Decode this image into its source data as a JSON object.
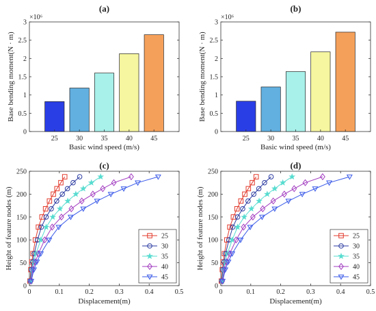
{
  "chart_data": [
    {
      "panel": "(a)",
      "type": "bar",
      "title": "(a)",
      "xlabel": "Basic wind speed (m/s)",
      "ylabel": "Base bending moment(N · m)",
      "y_exponent_label": "×10⁶",
      "categories": [
        "25",
        "30",
        "35",
        "40",
        "45"
      ],
      "values": [
        0.82,
        1.19,
        1.6,
        2.13,
        2.65
      ],
      "bar_colors": [
        "#2a3ee6",
        "#62b0e0",
        "#a8f0ea",
        "#f6f6a0",
        "#f5a05a"
      ],
      "ylim": [
        0,
        3
      ],
      "yticks": [
        0,
        0.5,
        1,
        1.5,
        2,
        2.5,
        3
      ],
      "ytick_labels": [
        "0",
        "0.5",
        "1",
        "1.5",
        "2",
        "2.5",
        "3"
      ],
      "grid": false
    },
    {
      "panel": "(b)",
      "type": "bar",
      "title": "(b)",
      "xlabel": "Basic wind speed (m/s)",
      "ylabel": "Base bending moment(N · m)",
      "y_exponent_label": "×10⁶",
      "categories": [
        "25",
        "30",
        "35",
        "40",
        "45"
      ],
      "values": [
        0.83,
        1.22,
        1.64,
        2.18,
        2.72
      ],
      "bar_colors": [
        "#2a3ee6",
        "#62b0e0",
        "#a8f0ea",
        "#f6f6a0",
        "#f5a05a"
      ],
      "ylim": [
        0,
        3
      ],
      "yticks": [
        0,
        0.5,
        1,
        1.5,
        2,
        2.5,
        3
      ],
      "ytick_labels": [
        "0",
        "0.5",
        "1",
        "1.5",
        "2",
        "2.5",
        "3"
      ],
      "grid": false
    },
    {
      "panel": "(c)",
      "type": "line",
      "title": "(c)",
      "xlabel": "Displacement(m)",
      "ylabel": "Height of feature nodes (m)",
      "xlim": [
        0,
        0.5
      ],
      "ylim": [
        0,
        250
      ],
      "xticks": [
        0,
        0.1,
        0.2,
        0.3,
        0.4,
        0.5
      ],
      "xtick_labels": [
        "0",
        "0.1",
        "0.2",
        "0.3",
        "0.4",
        "0.5"
      ],
      "yticks": [
        0,
        50,
        100,
        150,
        200,
        250
      ],
      "ytick_labels": [
        "0",
        "50",
        "100",
        "150",
        "200",
        "250"
      ],
      "legend": "bottom-right",
      "y": [
        10,
        35,
        52,
        70,
        100,
        128,
        150,
        168,
        185,
        200,
        212,
        225,
        238
      ],
      "series": [
        {
          "name": "25",
          "color": "#e23a2c",
          "marker": "square",
          "x": [
            0.002,
            0.005,
            0.008,
            0.012,
            0.02,
            0.03,
            0.042,
            0.054,
            0.067,
            0.08,
            0.092,
            0.105,
            0.118
          ]
        },
        {
          "name": "30",
          "color": "#2a3aa0",
          "marker": "circle",
          "x": [
            0.003,
            0.007,
            0.011,
            0.016,
            0.027,
            0.04,
            0.056,
            0.073,
            0.091,
            0.11,
            0.127,
            0.146,
            0.168
          ]
        },
        {
          "name": "35",
          "color": "#58dcd0",
          "marker": "star",
          "x": [
            0.004,
            0.009,
            0.015,
            0.022,
            0.038,
            0.056,
            0.078,
            0.102,
            0.128,
            0.155,
            0.18,
            0.207,
            0.238
          ]
        },
        {
          "name": "40",
          "color": "#a23cc0",
          "marker": "diamond",
          "x": [
            0.005,
            0.012,
            0.02,
            0.03,
            0.051,
            0.076,
            0.107,
            0.14,
            0.175,
            0.212,
            0.245,
            0.282,
            0.34
          ]
        },
        {
          "name": "45",
          "color": "#3a5ae8",
          "marker": "triangle-down",
          "x": [
            0.006,
            0.015,
            0.025,
            0.038,
            0.066,
            0.098,
            0.138,
            0.18,
            0.226,
            0.272,
            0.315,
            0.362,
            0.43
          ]
        }
      ]
    },
    {
      "panel": "(d)",
      "type": "line",
      "title": "(d)",
      "xlabel": "Displacement(m)",
      "ylabel": "Height of feature nodes (m)",
      "xlim": [
        0,
        0.5
      ],
      "ylim": [
        0,
        250
      ],
      "xticks": [
        0,
        0.1,
        0.2,
        0.3,
        0.4,
        0.5
      ],
      "xtick_labels": [
        "0",
        "0.1",
        "0.2",
        "0.3",
        "0.4",
        "0.5"
      ],
      "yticks": [
        0,
        50,
        100,
        150,
        200,
        250
      ],
      "ytick_labels": [
        "0",
        "50",
        "100",
        "150",
        "200",
        "250"
      ],
      "legend": "bottom-right",
      "y": [
        10,
        35,
        52,
        70,
        100,
        128,
        150,
        168,
        185,
        200,
        212,
        225,
        238
      ],
      "series": [
        {
          "name": "25",
          "color": "#e23a2c",
          "marker": "square",
          "x": [
            0.002,
            0.005,
            0.008,
            0.012,
            0.02,
            0.03,
            0.042,
            0.054,
            0.067,
            0.08,
            0.092,
            0.105,
            0.118
          ]
        },
        {
          "name": "30",
          "color": "#2a3aa0",
          "marker": "circle",
          "x": [
            0.003,
            0.007,
            0.011,
            0.016,
            0.027,
            0.04,
            0.056,
            0.073,
            0.091,
            0.11,
            0.127,
            0.146,
            0.168
          ]
        },
        {
          "name": "35",
          "color": "#58dcd0",
          "marker": "star",
          "x": [
            0.004,
            0.009,
            0.015,
            0.022,
            0.038,
            0.056,
            0.078,
            0.102,
            0.128,
            0.155,
            0.18,
            0.207,
            0.238
          ]
        },
        {
          "name": "40",
          "color": "#a23cc0",
          "marker": "diamond",
          "x": [
            0.005,
            0.012,
            0.02,
            0.03,
            0.051,
            0.076,
            0.107,
            0.14,
            0.175,
            0.212,
            0.245,
            0.282,
            0.34
          ]
        },
        {
          "name": "45",
          "color": "#3a5ae8",
          "marker": "triangle-down",
          "x": [
            0.006,
            0.015,
            0.025,
            0.038,
            0.066,
            0.098,
            0.138,
            0.18,
            0.226,
            0.272,
            0.315,
            0.362,
            0.43
          ]
        }
      ]
    }
  ]
}
